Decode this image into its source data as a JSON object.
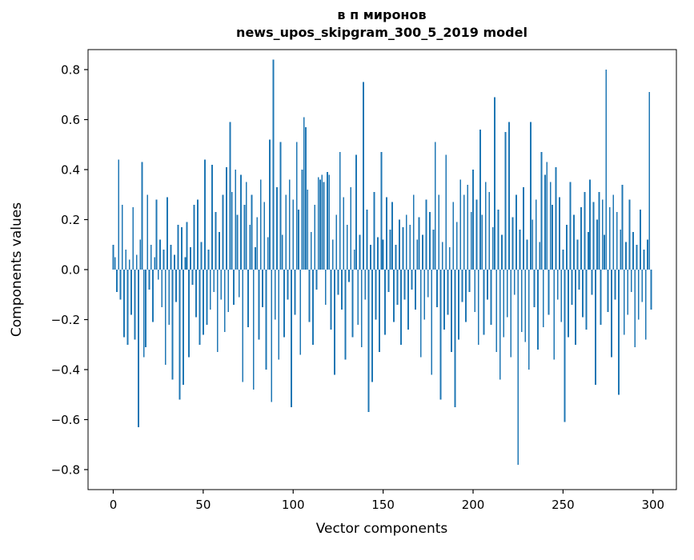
{
  "title": {
    "line1": "в п миронов",
    "line2": "news_upos_skipgram_300_5_2019 model"
  },
  "chart_data": {
    "type": "bar",
    "title": "в п миронов\nnews_upos_skipgram_300_5_2019 model",
    "xlabel": "Vector components",
    "ylabel": "Components values",
    "xlim": [
      -14,
      313
    ],
    "ylim": [
      -0.88,
      0.88
    ],
    "x_ticks": [
      0,
      50,
      100,
      150,
      200,
      250,
      300
    ],
    "y_ticks": [
      -0.8,
      -0.6,
      -0.4,
      -0.2,
      0.0,
      0.2,
      0.4,
      0.6,
      0.8
    ],
    "grid": false,
    "legend": "none",
    "bar_color": "#1f77b4",
    "bar_width_data_units": 0.8,
    "x_start": 0,
    "values": [
      0.1,
      0.05,
      -0.09,
      0.44,
      -0.12,
      0.26,
      -0.27,
      0.08,
      -0.3,
      0.04,
      -0.18,
      0.25,
      -0.28,
      0.06,
      -0.63,
      0.12,
      0.43,
      -0.35,
      -0.31,
      0.3,
      -0.08,
      0.1,
      -0.21,
      0.05,
      0.28,
      -0.04,
      0.12,
      -0.15,
      0.08,
      -0.38,
      0.29,
      -0.22,
      0.1,
      -0.44,
      0.06,
      -0.13,
      0.18,
      -0.52,
      0.17,
      -0.46,
      0.05,
      0.19,
      -0.35,
      0.09,
      -0.06,
      0.26,
      -0.19,
      0.28,
      -0.3,
      0.11,
      -0.26,
      0.44,
      -0.22,
      0.08,
      -0.16,
      0.42,
      -0.09,
      0.23,
      -0.33,
      0.15,
      -0.12,
      0.3,
      -0.25,
      0.41,
      -0.17,
      0.59,
      0.31,
      -0.14,
      0.4,
      0.22,
      -0.11,
      0.38,
      -0.45,
      0.26,
      0.35,
      -0.23,
      0.18,
      0.3,
      -0.48,
      0.09,
      0.21,
      -0.28,
      0.36,
      -0.15,
      0.27,
      -0.4,
      0.13,
      0.52,
      -0.53,
      0.84,
      -0.2,
      0.33,
      -0.36,
      0.51,
      0.14,
      -0.27,
      0.3,
      -0.12,
      0.36,
      -0.55,
      0.28,
      -0.18,
      0.51,
      0.24,
      -0.34,
      0.4,
      0.61,
      0.57,
      0.32,
      -0.21,
      0.15,
      -0.3,
      0.26,
      -0.08,
      0.37,
      0.36,
      0.38,
      0.35,
      -0.14,
      0.39,
      0.38,
      -0.24,
      0.12,
      -0.42,
      0.22,
      -0.1,
      0.47,
      -0.16,
      0.29,
      -0.36,
      0.18,
      -0.05,
      0.33,
      -0.27,
      0.08,
      0.46,
      -0.22,
      0.14,
      -0.31,
      0.75,
      -0.12,
      0.24,
      -0.57,
      0.1,
      -0.45,
      0.31,
      -0.2,
      0.13,
      -0.33,
      0.47,
      0.12,
      -0.26,
      0.29,
      -0.09,
      0.16,
      0.27,
      -0.21,
      0.1,
      -0.14,
      0.2,
      -0.3,
      0.17,
      -0.12,
      0.22,
      -0.24,
      0.18,
      -0.08,
      0.3,
      -0.16,
      0.12,
      0.21,
      -0.35,
      0.14,
      -0.2,
      0.28,
      -0.11,
      0.23,
      -0.42,
      0.16,
      0.51,
      -0.15,
      0.3,
      -0.52,
      0.11,
      -0.24,
      0.46,
      -0.18,
      0.09,
      -0.33,
      0.27,
      -0.55,
      0.19,
      -0.28,
      0.36,
      -0.13,
      0.3,
      -0.21,
      0.34,
      -0.09,
      0.23,
      0.4,
      -0.17,
      0.28,
      -0.3,
      0.56,
      0.22,
      -0.26,
      0.35,
      -0.12,
      0.31,
      -0.22,
      0.17,
      0.69,
      -0.33,
      0.24,
      -0.44,
      0.14,
      -0.27,
      0.55,
      -0.19,
      0.59,
      -0.35,
      0.21,
      -0.1,
      0.3,
      -0.78,
      0.16,
      -0.25,
      0.33,
      -0.29,
      0.12,
      -0.4,
      0.59,
      0.2,
      -0.15,
      0.28,
      -0.32,
      0.11,
      0.47,
      -0.23,
      0.38,
      0.43,
      -0.18,
      0.35,
      0.26,
      -0.36,
      0.41,
      -0.12,
      0.29,
      -0.21,
      0.08,
      -0.61,
      0.18,
      -0.27,
      0.35,
      -0.14,
      0.22,
      -0.3,
      0.12,
      -0.08,
      0.25,
      -0.19,
      0.31,
      -0.24,
      0.15,
      0.36,
      -0.1,
      0.27,
      -0.46,
      0.2,
      0.31,
      -0.22,
      0.28,
      0.14,
      0.8,
      -0.17,
      0.25,
      -0.35,
      0.3,
      -0.12,
      0.23,
      -0.5,
      0.16,
      0.34,
      -0.26,
      0.11,
      -0.18,
      0.28,
      -0.09,
      0.15,
      -0.31,
      0.1,
      -0.2,
      0.24,
      -0.13,
      0.08,
      -0.28,
      0.12,
      0.71,
      -0.16
    ]
  },
  "colors": {
    "bar": "#1f77b4",
    "axis": "#000000",
    "background": "#ffffff"
  }
}
